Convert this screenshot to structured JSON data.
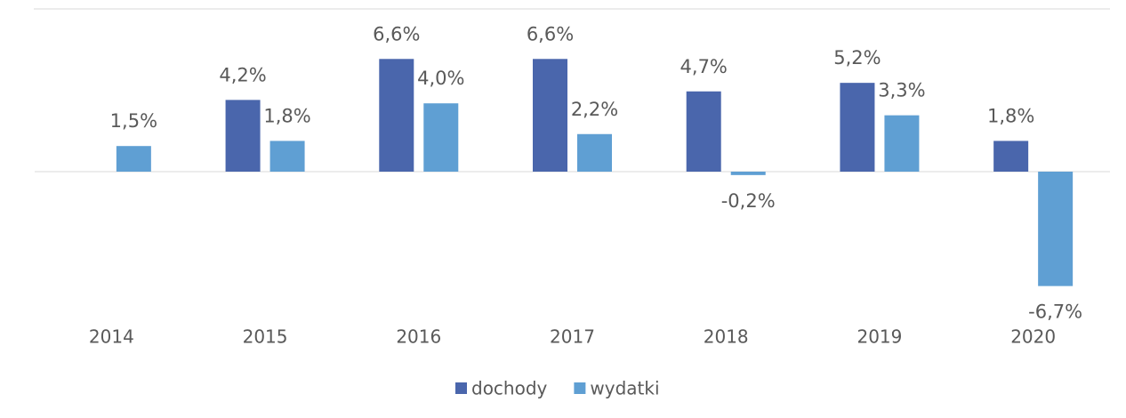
{
  "chart_data": {
    "type": "bar",
    "categories": [
      "2014",
      "2015",
      "2016",
      "2017",
      "2018",
      "2019",
      "2020"
    ],
    "series": [
      {
        "name": "dochody",
        "color": "#4a66ac",
        "values": [
          null,
          4.2,
          6.6,
          6.6,
          4.7,
          5.2,
          1.8
        ],
        "value_labels": [
          null,
          "4,2%",
          "6,6%",
          "6,6%",
          "4,7%",
          "5,2%",
          "1,8%"
        ]
      },
      {
        "name": "wydatki",
        "color": "#5f9fd3",
        "values": [
          1.5,
          1.8,
          4.0,
          2.2,
          -0.2,
          3.3,
          -6.7
        ],
        "value_labels": [
          "1,5%",
          "1,8%",
          "4,0%",
          "2,2%",
          "-0,2%",
          "3,3%",
          "-6,7%"
        ]
      }
    ],
    "ylim": [
      -7,
      7
    ],
    "legend": "bottom"
  }
}
